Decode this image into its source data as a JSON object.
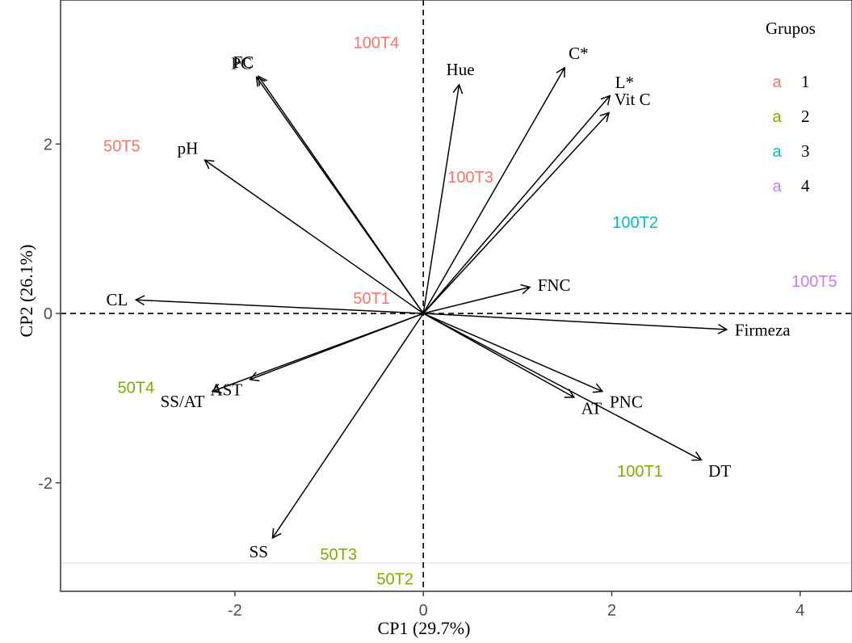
{
  "chart_data": {
    "type": "scatter",
    "subtype": "pca-biplot",
    "xlabel": "CP1 (29.7%)",
    "ylabel": "CP2 (26.1%)",
    "xlim": [
      -3.85,
      4.55
    ],
    "ylim": [
      -3.28,
      3.7
    ],
    "xticks": [
      -2,
      0,
      2,
      4
    ],
    "yticks": [
      -2,
      0,
      2
    ],
    "grid": false,
    "reference_lines": {
      "x": 0,
      "y": 0,
      "style": "dashed"
    },
    "colors": {
      "1": "#F8766D",
      "2": "#7CAE00",
      "3": "#00BFC4",
      "4": "#C77CFF"
    },
    "legend": {
      "title": "Grupos",
      "position": "right",
      "key_glyph": "a",
      "entries": [
        {
          "label": "1",
          "color": "#F8766D"
        },
        {
          "label": "2",
          "color": "#7CAE00"
        },
        {
          "label": "3",
          "color": "#00BFC4"
        },
        {
          "label": "4",
          "color": "#C77CFF"
        }
      ]
    },
    "variables": [
      {
        "name": "FC",
        "x": -1.75,
        "y": 2.8
      },
      {
        "name": "PC",
        "x": -1.77,
        "y": 2.79
      },
      {
        "name": "Hue",
        "x": 0.38,
        "y": 2.7
      },
      {
        "name": "C*",
        "x": 1.5,
        "y": 2.9
      },
      {
        "name": "L*",
        "x": 1.98,
        "y": 2.57
      },
      {
        "name": "Vit C",
        "x": 1.97,
        "y": 2.37
      },
      {
        "name": "pH",
        "x": -2.32,
        "y": 1.81
      },
      {
        "name": "FNC",
        "x": 1.13,
        "y": 0.31
      },
      {
        "name": "CL",
        "x": -3.05,
        "y": 0.16
      },
      {
        "name": "Firmeza",
        "x": 3.22,
        "y": -0.19
      },
      {
        "name": "AST",
        "x": -1.84,
        "y": -0.78
      },
      {
        "name": "SS/AT",
        "x": -2.24,
        "y": -0.92
      },
      {
        "name": "PNC",
        "x": 1.9,
        "y": -0.92
      },
      {
        "name": "AT",
        "x": 1.6,
        "y": -0.99
      },
      {
        "name": "DT",
        "x": 2.95,
        "y": -1.73
      },
      {
        "name": "SS",
        "x": -1.6,
        "y": -2.65
      }
    ],
    "observations": [
      {
        "label": "100T4",
        "x": -0.5,
        "y": 3.2,
        "group": "1"
      },
      {
        "label": "50T5",
        "x": -3.2,
        "y": 1.98,
        "group": "1"
      },
      {
        "label": "100T3",
        "x": 0.5,
        "y": 1.61,
        "group": "1"
      },
      {
        "label": "50T1",
        "x": -0.55,
        "y": 0.18,
        "group": "1"
      },
      {
        "label": "100T2",
        "x": 2.25,
        "y": 1.08,
        "group": "3"
      },
      {
        "label": "100T5",
        "x": 4.15,
        "y": 0.38,
        "group": "4"
      },
      {
        "label": "50T4",
        "x": -3.05,
        "y": -0.87,
        "group": "2"
      },
      {
        "label": "100T1",
        "x": 2.3,
        "y": -1.86,
        "group": "2"
      },
      {
        "label": "50T3",
        "x": -0.9,
        "y": -2.84,
        "group": "2"
      },
      {
        "label": "50T2",
        "x": -0.3,
        "y": -3.13,
        "group": "2"
      }
    ]
  }
}
